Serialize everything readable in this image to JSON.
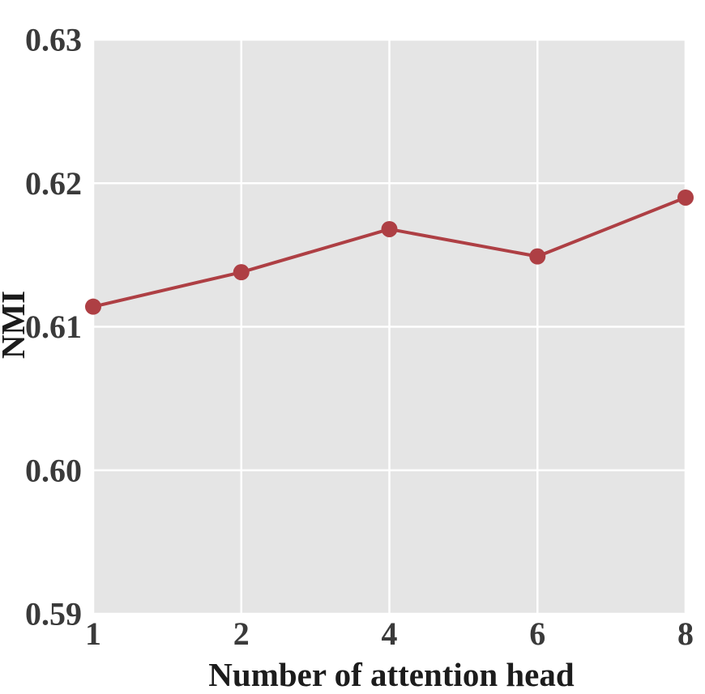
{
  "chart_data": {
    "type": "line",
    "title": "",
    "xlabel": "Number of attention head",
    "ylabel": "NMI",
    "categories": [
      "1",
      "2",
      "4",
      "6",
      "8"
    ],
    "series": [
      {
        "name": "NMI",
        "values": [
          0.6114,
          0.6138,
          0.6168,
          0.6149,
          0.619
        ]
      }
    ],
    "ylim": [
      0.59,
      0.63
    ],
    "yticks": [
      0.59,
      0.6,
      0.61,
      0.62,
      0.63
    ],
    "ytick_labels": [
      "0.59",
      "0.60",
      "0.61",
      "0.62",
      "0.63"
    ],
    "grid": true,
    "legend": false,
    "line_color": "#AE3F44",
    "marker_color": "#AE3F44",
    "marker_shape": "circle",
    "plot_bg": "#E5E5E5",
    "grid_color": "#FFFFFF",
    "tick_color": "#3A3A3A",
    "label_color": "#1C1C1C"
  }
}
